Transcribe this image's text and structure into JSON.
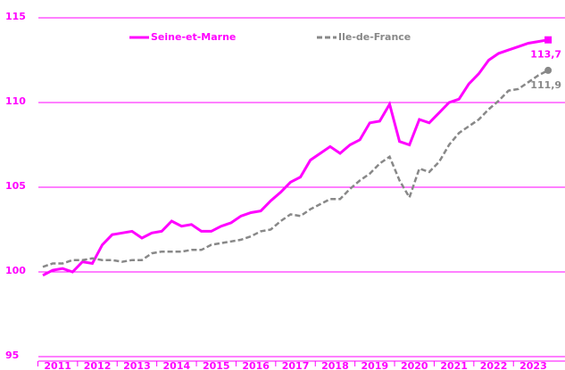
{
  "chart_data": {
    "type": "line",
    "categories": [
      null,
      "2011",
      null,
      null,
      null,
      "2012",
      null,
      null,
      null,
      "2013",
      null,
      null,
      null,
      "2014",
      null,
      null,
      null,
      "2015",
      null,
      null,
      null,
      "2016",
      null,
      null,
      null,
      "2017",
      null,
      null,
      null,
      "2018",
      null,
      null,
      null,
      "2019",
      null,
      null,
      null,
      "2020",
      null,
      null,
      null,
      "2021",
      null,
      null,
      null,
      "2022",
      null,
      null,
      null,
      "2023",
      null,
      null
    ],
    "series": [
      {
        "name": "Seine-et-Marne",
        "color": "#ff00ff",
        "dash": false,
        "marker": "square",
        "values": [
          99.8,
          100.1,
          100.2,
          100.0,
          100.6,
          100.5,
          101.6,
          102.2,
          102.3,
          102.4,
          102.0,
          102.3,
          102.4,
          103.0,
          102.7,
          102.8,
          102.4,
          102.4,
          102.7,
          102.9,
          103.3,
          103.5,
          103.6,
          104.2,
          104.7,
          105.3,
          105.6,
          106.6,
          107.0,
          107.4,
          107.0,
          107.5,
          107.8,
          108.8,
          108.9,
          109.9,
          107.7,
          107.5,
          109.0,
          108.8,
          109.4,
          110.0,
          110.2,
          111.1,
          111.7,
          112.5,
          112.9,
          113.1,
          113.3,
          113.5,
          113.6,
          113.7
        ],
        "value_labels": [
          null,
          null,
          null,
          null,
          null,
          null,
          null,
          null,
          null,
          null,
          null,
          null,
          null,
          null,
          null,
          null,
          null,
          null,
          null,
          null,
          null,
          null,
          null,
          null,
          null,
          null,
          null,
          null,
          null,
          null,
          null,
          null,
          null,
          null,
          null,
          null,
          null,
          null,
          null,
          null,
          null,
          null,
          null,
          null,
          null,
          null,
          null,
          null,
          null,
          null,
          null,
          "113,7"
        ]
      },
      {
        "name": "Ile-de-France",
        "color": "#888888",
        "dash": true,
        "marker": "circle",
        "values": [
          100.3,
          100.5,
          100.5,
          100.7,
          100.7,
          100.8,
          100.7,
          100.7,
          100.6,
          100.7,
          100.7,
          101.1,
          101.2,
          101.2,
          101.2,
          101.3,
          101.3,
          101.6,
          101.7,
          101.8,
          101.9,
          102.1,
          102.4,
          102.5,
          103.0,
          103.4,
          103.3,
          103.7,
          104.0,
          104.3,
          104.3,
          104.9,
          105.4,
          105.8,
          106.4,
          106.8,
          105.4,
          104.4,
          106.1,
          105.9,
          106.5,
          107.5,
          108.2,
          108.6,
          109.0,
          109.6,
          110.1,
          110.7,
          110.8,
          111.2,
          111.6,
          111.9
        ],
        "value_labels": [
          null,
          null,
          null,
          null,
          null,
          null,
          null,
          null,
          null,
          null,
          null,
          null,
          null,
          null,
          null,
          null,
          null,
          null,
          null,
          null,
          null,
          null,
          null,
          null,
          null,
          null,
          null,
          null,
          null,
          null,
          null,
          null,
          null,
          null,
          null,
          null,
          null,
          null,
          null,
          null,
          null,
          null,
          null,
          null,
          null,
          null,
          null,
          null,
          null,
          null,
          null,
          "111,9"
        ]
      }
    ],
    "ylim": [
      95,
      115
    ],
    "yticks": [
      95,
      100,
      105,
      110,
      115
    ],
    "grid": true,
    "legend": "top"
  }
}
